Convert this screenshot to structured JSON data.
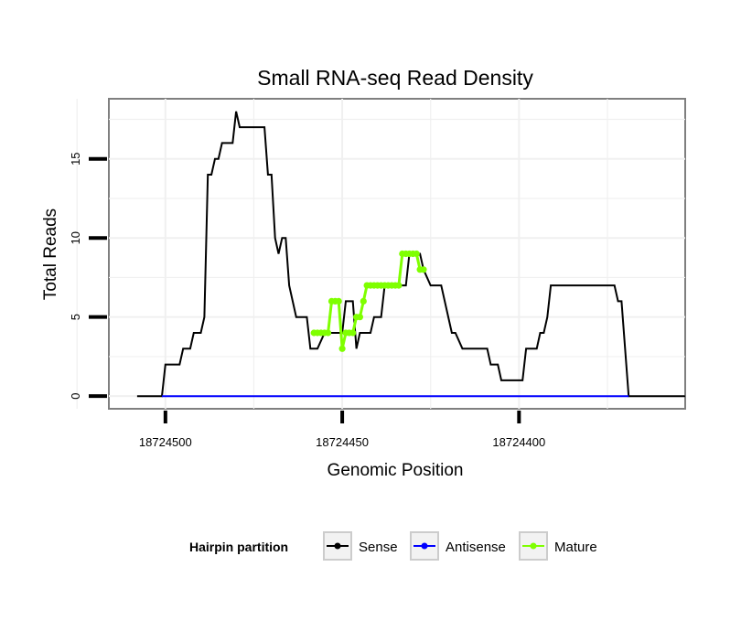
{
  "chart_data": {
    "type": "line",
    "title": "Small RNA-seq Read Density",
    "xlabel": "Genomic Position",
    "ylabel": "Total Reads",
    "x_reversed": true,
    "xlim": [
      18724516,
      18724353
    ],
    "ylim": [
      -0.8,
      18.8
    ],
    "x_ticks": [
      18724500,
      18724450,
      18724400
    ],
    "x_tick_labels": [
      "18724500",
      "18724450",
      "18724400"
    ],
    "y_ticks": [
      0,
      5,
      10,
      15
    ],
    "y_tick_labels": [
      "0",
      "5",
      "10",
      "15"
    ],
    "grid": true,
    "legend": {
      "position": "bottom",
      "title": "Hairpin partition",
      "entries": [
        {
          "label": "Sense",
          "color": "#000000"
        },
        {
          "label": "Antisense",
          "color": "#0000ff"
        },
        {
          "label": "Mature",
          "color": "#7fff00"
        }
      ]
    },
    "series": [
      {
        "name": "Sense",
        "color": "#000000",
        "style": "line",
        "points": [
          [
            18724508,
            0
          ],
          [
            18724501,
            0
          ],
          [
            18724500,
            2
          ],
          [
            18724496,
            2
          ],
          [
            18724495,
            3
          ],
          [
            18724493,
            3
          ],
          [
            18724492,
            4
          ],
          [
            18724490,
            4
          ],
          [
            18724489,
            5
          ],
          [
            18724488,
            14
          ],
          [
            18724487,
            14
          ],
          [
            18724486,
            15
          ],
          [
            18724485,
            15
          ],
          [
            18724484,
            16
          ],
          [
            18724481,
            16
          ],
          [
            18724480,
            18
          ],
          [
            18724479,
            17
          ],
          [
            18724472,
            17
          ],
          [
            18724471,
            14
          ],
          [
            18724470,
            14
          ],
          [
            18724469,
            10
          ],
          [
            18724468,
            9
          ],
          [
            18724467,
            10
          ],
          [
            18724466,
            10
          ],
          [
            18724465,
            7
          ],
          [
            18724463,
            5
          ],
          [
            18724460,
            5
          ],
          [
            18724459,
            3
          ],
          [
            18724457,
            3
          ],
          [
            18724455,
            4
          ],
          [
            18724450,
            4
          ],
          [
            18724449,
            6
          ],
          [
            18724447,
            6
          ],
          [
            18724446,
            3
          ],
          [
            18724445,
            4
          ],
          [
            18724442,
            4
          ],
          [
            18724441,
            5
          ],
          [
            18724439,
            5
          ],
          [
            18724438,
            7
          ],
          [
            18724432,
            7
          ],
          [
            18724431,
            9
          ],
          [
            18724428,
            9
          ],
          [
            18724427,
            8
          ],
          [
            18724425,
            7
          ],
          [
            18724422,
            7
          ],
          [
            18724419,
            4
          ],
          [
            18724418,
            4
          ],
          [
            18724416,
            3
          ],
          [
            18724409,
            3
          ],
          [
            18724408,
            2
          ],
          [
            18724406,
            2
          ],
          [
            18724405,
            1
          ],
          [
            18724399,
            1
          ],
          [
            18724398,
            3
          ],
          [
            18724395,
            3
          ],
          [
            18724394,
            4
          ],
          [
            18724393,
            4
          ],
          [
            18724392,
            5
          ],
          [
            18724391,
            7
          ],
          [
            18724373,
            7
          ],
          [
            18724372,
            6
          ],
          [
            18724371,
            6
          ],
          [
            18724370,
            3
          ],
          [
            18724369,
            0
          ],
          [
            18724353,
            0
          ]
        ]
      },
      {
        "name": "Antisense",
        "color": "#0000ff",
        "style": "line",
        "points": [
          [
            18724501,
            0
          ],
          [
            18724369,
            0
          ]
        ]
      },
      {
        "name": "Mature",
        "color": "#7fff00",
        "style": "dotted-line",
        "points": [
          [
            18724458,
            4
          ],
          [
            18724457,
            4
          ],
          [
            18724456,
            4
          ],
          [
            18724455,
            4
          ],
          [
            18724454,
            4
          ],
          [
            18724453,
            6
          ],
          [
            18724452,
            6
          ],
          [
            18724451,
            6
          ],
          [
            18724450,
            3
          ],
          [
            18724449,
            4
          ],
          [
            18724448,
            4
          ],
          [
            18724447,
            4
          ],
          [
            18724446,
            5
          ],
          [
            18724445,
            5
          ],
          [
            18724444,
            6
          ],
          [
            18724443,
            7
          ],
          [
            18724442,
            7
          ],
          [
            18724441,
            7
          ],
          [
            18724440,
            7
          ],
          [
            18724439,
            7
          ],
          [
            18724438,
            7
          ],
          [
            18724437,
            7
          ],
          [
            18724436,
            7
          ],
          [
            18724435,
            7
          ],
          [
            18724434,
            7
          ],
          [
            18724433,
            9
          ],
          [
            18724432,
            9
          ],
          [
            18724431,
            9
          ],
          [
            18724430,
            9
          ],
          [
            18724429,
            9
          ],
          [
            18724428,
            8
          ],
          [
            18724427,
            8
          ]
        ]
      }
    ]
  }
}
